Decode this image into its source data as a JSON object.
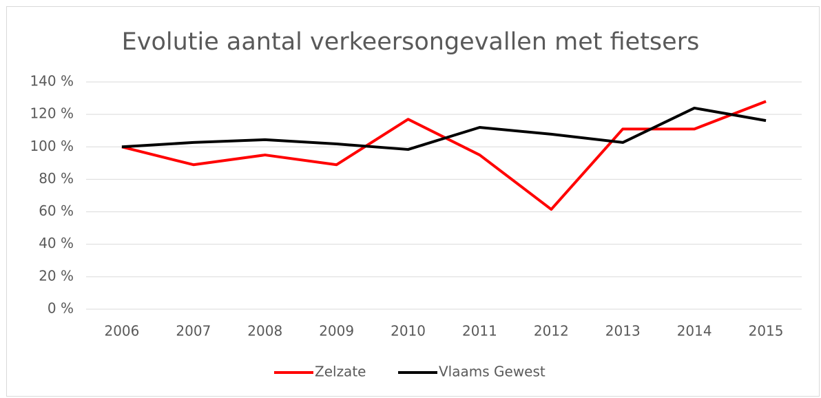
{
  "chart_data": {
    "type": "line",
    "title": "Evolutie aantal verkeersongevallen met fietsers",
    "categories": [
      "2006",
      "2007",
      "2008",
      "2009",
      "2010",
      "2011",
      "2012",
      "2013",
      "2014",
      "2015"
    ],
    "series": [
      {
        "name": "Zelzate",
        "color": "#ff0000",
        "values": [
          100,
          89,
          95,
          89,
          117,
          95,
          61.5,
          111,
          111,
          128
        ]
      },
      {
        "name": "Vlaams Gewest",
        "color": "#000000",
        "values": [
          100,
          102.7,
          104.4,
          101.8,
          98.4,
          112,
          107.8,
          102.7,
          123.9,
          116.2
        ]
      }
    ],
    "ylim": [
      0,
      140
    ],
    "yticks": [
      {
        "value": 0,
        "label": "0 %"
      },
      {
        "value": 20,
        "label": "20 %"
      },
      {
        "value": 40,
        "label": "40 %"
      },
      {
        "value": 60,
        "label": "60 %"
      },
      {
        "value": 80,
        "label": "80 %"
      },
      {
        "value": 100,
        "label": "100 %"
      },
      {
        "value": 120,
        "label": "120 %"
      },
      {
        "value": 140,
        "label": "140 %"
      }
    ],
    "grid": true,
    "legend": "bottom"
  }
}
